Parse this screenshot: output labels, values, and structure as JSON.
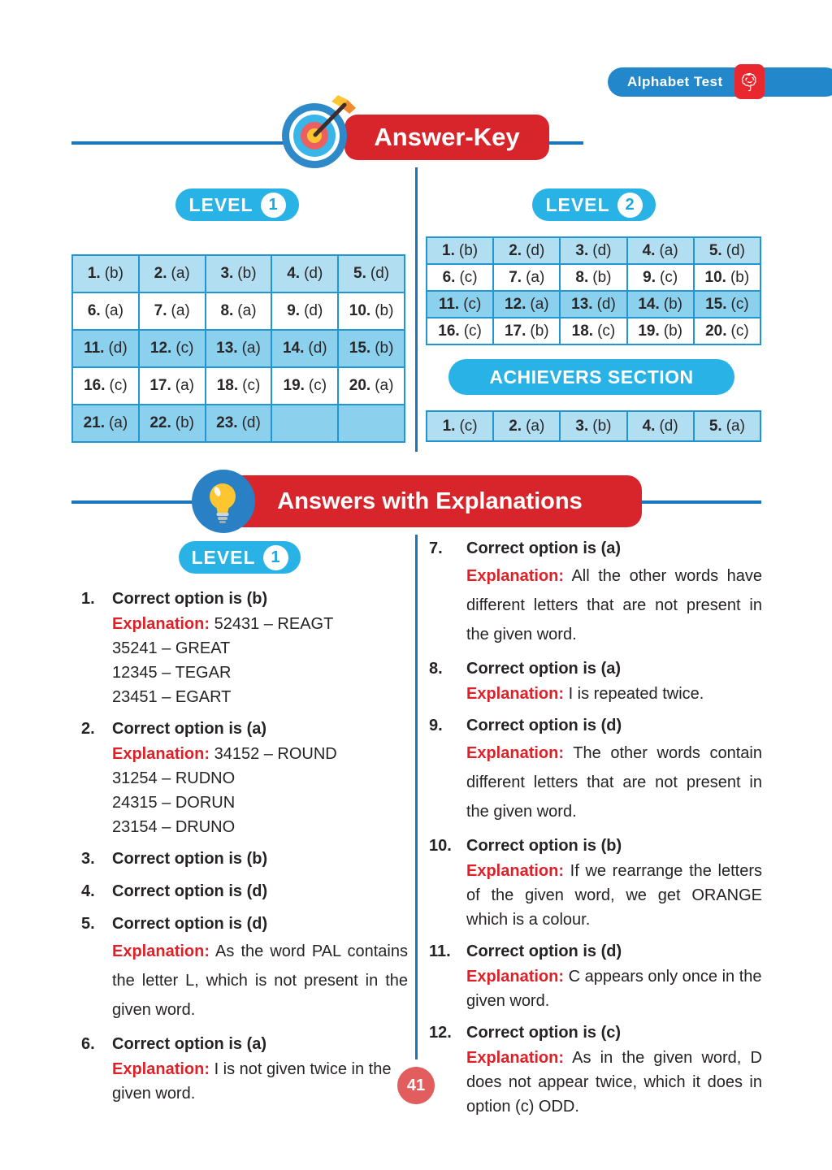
{
  "header": {
    "chapter_badge": "Alphabet Test",
    "icons": {
      "brain": "brain-icon"
    }
  },
  "answer_key": {
    "title": "Answer-Key",
    "icons": {
      "target": "target-icon"
    },
    "level1": {
      "label": "LEVEL",
      "number": "1",
      "answers": [
        {
          "n": "1.",
          "o": "(b)"
        },
        {
          "n": "2.",
          "o": "(a)"
        },
        {
          "n": "3.",
          "o": "(b)"
        },
        {
          "n": "4.",
          "o": "(d)"
        },
        {
          "n": "5.",
          "o": "(d)"
        },
        {
          "n": "6.",
          "o": "(a)"
        },
        {
          "n": "7.",
          "o": "(a)"
        },
        {
          "n": "8.",
          "o": "(a)"
        },
        {
          "n": "9.",
          "o": "(d)"
        },
        {
          "n": "10.",
          "o": "(b)"
        },
        {
          "n": "11.",
          "o": "(d)"
        },
        {
          "n": "12.",
          "o": "(c)"
        },
        {
          "n": "13.",
          "o": "(a)"
        },
        {
          "n": "14.",
          "o": "(d)"
        },
        {
          "n": "15.",
          "o": "(b)"
        },
        {
          "n": "16.",
          "o": "(c)"
        },
        {
          "n": "17.",
          "o": "(a)"
        },
        {
          "n": "18.",
          "o": "(c)"
        },
        {
          "n": "19.",
          "o": "(c)"
        },
        {
          "n": "20.",
          "o": "(a)"
        },
        {
          "n": "21.",
          "o": "(a)"
        },
        {
          "n": "22.",
          "o": "(b)"
        },
        {
          "n": "23.",
          "o": "(d)"
        }
      ]
    },
    "level2": {
      "label": "LEVEL",
      "number": "2",
      "answers": [
        {
          "n": "1.",
          "o": "(b)"
        },
        {
          "n": "2.",
          "o": "(d)"
        },
        {
          "n": "3.",
          "o": "(d)"
        },
        {
          "n": "4.",
          "o": "(a)"
        },
        {
          "n": "5.",
          "o": "(d)"
        },
        {
          "n": "6.",
          "o": "(c)"
        },
        {
          "n": "7.",
          "o": "(a)"
        },
        {
          "n": "8.",
          "o": "(b)"
        },
        {
          "n": "9.",
          "o": "(c)"
        },
        {
          "n": "10.",
          "o": "(b)"
        },
        {
          "n": "11.",
          "o": "(c)"
        },
        {
          "n": "12.",
          "o": "(a)"
        },
        {
          "n": "13.",
          "o": "(d)"
        },
        {
          "n": "14.",
          "o": "(b)"
        },
        {
          "n": "15.",
          "o": "(c)"
        },
        {
          "n": "16.",
          "o": "(c)"
        },
        {
          "n": "17.",
          "o": "(b)"
        },
        {
          "n": "18.",
          "o": "(c)"
        },
        {
          "n": "19.",
          "o": "(b)"
        },
        {
          "n": "20.",
          "o": "(c)"
        }
      ]
    },
    "achievers": {
      "title": "ACHIEVERS SECTION",
      "answers": [
        {
          "n": "1.",
          "o": "(c)"
        },
        {
          "n": "2.",
          "o": "(a)"
        },
        {
          "n": "3.",
          "o": "(b)"
        },
        {
          "n": "4.",
          "o": "(d)"
        },
        {
          "n": "5.",
          "o": "(a)"
        }
      ]
    }
  },
  "explanations": {
    "title": "Answers with Explanations",
    "icons": {
      "bulb": "lightbulb-icon"
    },
    "level_badge": {
      "label": "LEVEL",
      "number": "1"
    },
    "explanation_label": "Explanation:",
    "left_column": [
      {
        "num": "1.",
        "heading": "Correct option is (b)",
        "explanation": "52431 – REAGT",
        "lines": [
          "35241 – GREAT",
          "12345 – TEGAR",
          "23451 – EGART"
        ],
        "justify": false,
        "loose": false
      },
      {
        "num": "2.",
        "heading": "Correct option is (a)",
        "explanation": "34152 – ROUND",
        "lines": [
          "31254 – RUDNO",
          "24315 – DORUN",
          "23154 – DRUNO"
        ],
        "justify": false,
        "loose": false
      },
      {
        "num": "3.",
        "heading": "Correct option is (b)",
        "explanation": null,
        "lines": [],
        "justify": false,
        "loose": false
      },
      {
        "num": "4.",
        "heading": "Correct option is (d)",
        "explanation": null,
        "lines": [],
        "justify": false,
        "loose": false
      },
      {
        "num": "5.",
        "heading": "Correct option is (d)",
        "explanation": "As the word PAL contains the letter L, which is not present in the given word.",
        "lines": [],
        "justify": true,
        "loose": true
      },
      {
        "num": "6.",
        "heading": "Correct option is (a)",
        "explanation": "I is not given twice in the given word.",
        "lines": [],
        "justify": false,
        "loose": false
      }
    ],
    "right_column": [
      {
        "num": "7.",
        "heading": "Correct option is (a)",
        "explanation": "All the other words have different letters that are not present in the given word.",
        "lines": [],
        "justify": true,
        "loose": true
      },
      {
        "num": "8.",
        "heading": "Correct option is (a)",
        "explanation": "I is repeated twice.",
        "lines": [],
        "justify": false,
        "loose": false
      },
      {
        "num": "9.",
        "heading": "Correct option is (d)",
        "explanation": "The other words contain different letters that are not present in the given word.",
        "lines": [],
        "justify": true,
        "loose": true
      },
      {
        "num": "10.",
        "heading": "Correct option is (b)",
        "explanation": "If we rearrange the letters of the given word, we get ORANGE which is a colour.",
        "lines": [],
        "justify": true,
        "loose": false
      },
      {
        "num": "11.",
        "heading": "Correct option is (d)",
        "explanation": "C appears only once in the given word.",
        "lines": [],
        "justify": false,
        "loose": false
      },
      {
        "num": "12.",
        "heading": "Correct option is (c)",
        "explanation": "As in the given word, D does not appear twice, which it does in option (c) ODD.",
        "lines": [],
        "justify": true,
        "loose": false
      }
    ]
  },
  "footer": {
    "page_number": "41"
  },
  "colors": {
    "accent_blue": "#1b75bc",
    "badge_blue": "#2388cb",
    "cyan": "#29b2e6",
    "pill_red": "#d8252c",
    "explanation_red": "#e01f26",
    "brain_red": "#e8282e",
    "table_border": "#2196d3",
    "row_light": "#b2def2",
    "row_medium": "#8bd0ed",
    "page_circle_red": "#e25e5e"
  }
}
